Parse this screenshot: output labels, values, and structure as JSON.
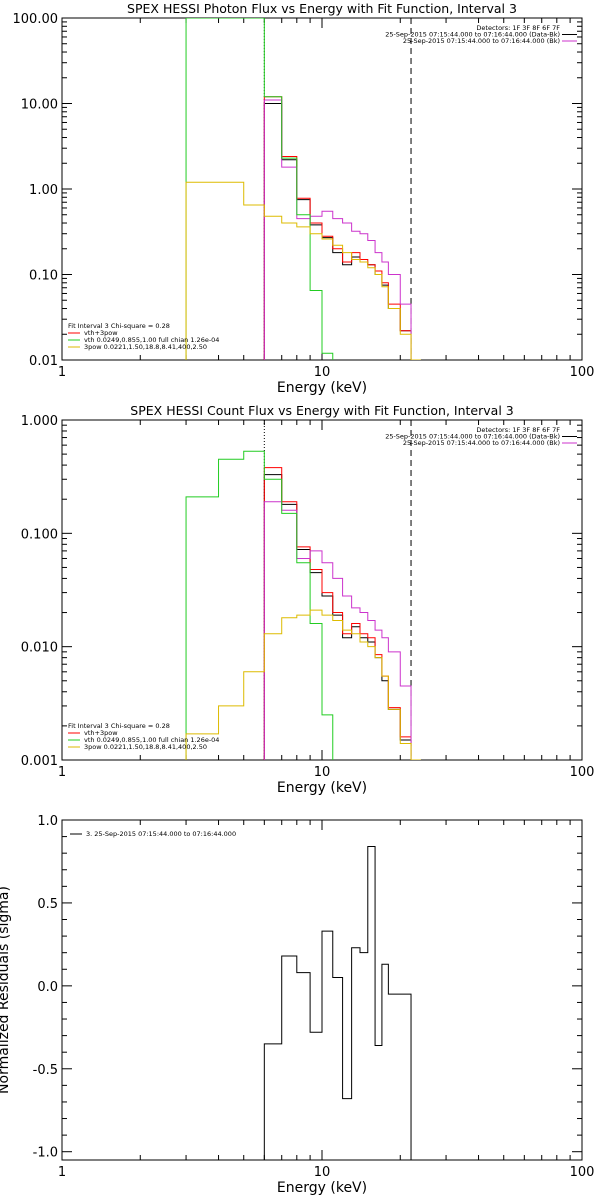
{
  "chart_data": [
    {
      "type": "line",
      "title": "SPEX HESSI Photon Flux vs Energy with Fit Function, Interval 3",
      "xlabel": "Energy (keV)",
      "ylabel": "",
      "x_scale": "log",
      "y_scale": "log",
      "xlim": [
        1,
        100
      ],
      "ylim": [
        0.01,
        100
      ],
      "x_ticks": [
        "1",
        "10",
        "100"
      ],
      "y_ticks": [
        "0.01",
        "0.10",
        "1.00",
        "10.00",
        "100.00"
      ],
      "x_tick_values": [
        1,
        10,
        100
      ],
      "y_tick_values": [
        0.01,
        0.1,
        1,
        10,
        100
      ],
      "info_top": [
        "Detectors: 1F 3F 8F 6F 7F",
        "25-Sep-2015 07:15:44.000 to 07:16:44.000 (Data-Bk)",
        "25-Sep-2015 07:15:44.000 to 07:16:44.000 (Bk)"
      ],
      "info_bottom": [
        "Fit Interval 3   Chi-square = 0.28",
        "vth+3pow",
        "vth 0.0249,0.855,1.00  full chian 1.26e-04",
        "3pow 0.0221,1.50,18.8,8.41,400,2.50"
      ],
      "vlines": [
        {
          "x": 6,
          "style": "dotted",
          "color": "#000000"
        },
        {
          "x": 22,
          "style": "dashed",
          "color": "#000000"
        }
      ],
      "series": [
        {
          "color": "#000000",
          "edges": [
            6,
            7,
            8,
            9,
            10,
            11,
            12,
            13,
            14,
            15,
            16,
            17,
            18,
            20,
            22
          ],
          "values": [
            10.0,
            2.2,
            0.75,
            0.38,
            0.27,
            0.18,
            0.13,
            0.16,
            0.14,
            0.13,
            0.1,
            0.075,
            0.04,
            0.022
          ]
        },
        {
          "color": "#ff0000",
          "edges": [
            6,
            7,
            8,
            9,
            10,
            11,
            12,
            13,
            14,
            15,
            16,
            17,
            18,
            20,
            22
          ],
          "values": [
            12.0,
            2.4,
            0.78,
            0.4,
            0.28,
            0.2,
            0.14,
            0.18,
            0.15,
            0.13,
            0.11,
            0.08,
            0.045,
            0.022
          ]
        },
        {
          "color": "#cc33cc",
          "edges": [
            6,
            7,
            8,
            9,
            10,
            11,
            12,
            13,
            14,
            15,
            16,
            17,
            18,
            20,
            22
          ],
          "values": [
            11.0,
            1.8,
            0.45,
            0.48,
            0.55,
            0.45,
            0.4,
            0.32,
            0.3,
            0.25,
            0.18,
            0.14,
            0.1,
            0.045
          ]
        },
        {
          "color": "#22cc22",
          "edges": [
            3,
            4,
            5,
            6,
            7,
            8,
            9,
            10,
            11
          ],
          "values": [
            150,
            150,
            100,
            12.0,
            2.3,
            0.5,
            0.065,
            0.012
          ]
        },
        {
          "color": "#ddbb00",
          "edges": [
            3,
            4,
            5,
            6,
            7,
            8,
            9,
            10,
            11,
            12,
            13,
            14,
            15,
            16,
            17,
            18,
            20,
            22,
            24
          ],
          "values": [
            1.2,
            1.2,
            0.65,
            0.48,
            0.4,
            0.36,
            0.3,
            0.26,
            0.22,
            0.18,
            0.15,
            0.14,
            0.12,
            0.1,
            0.072,
            0.04,
            0.02,
            0.01
          ]
        }
      ]
    },
    {
      "type": "line",
      "title": "SPEX HESSI Count Flux vs Energy with Fit Function, Interval 3",
      "xlabel": "Energy (keV)",
      "ylabel": "",
      "x_scale": "log",
      "y_scale": "log",
      "xlim": [
        1,
        100
      ],
      "ylim": [
        0.001,
        1
      ],
      "x_ticks": [
        "1",
        "10",
        "100"
      ],
      "y_ticks": [
        "0.001",
        "0.010",
        "0.100",
        "1.000"
      ],
      "x_tick_values": [
        1,
        10,
        100
      ],
      "y_tick_values": [
        0.001,
        0.01,
        0.1,
        1
      ],
      "info_top": [
        "Detectors: 1F 3F 8F 6F 7F",
        "25-Sep-2015 07:15:44.000 to 07:16:44.000 (Data-Bk)",
        "25-Sep-2015 07:15:44.000 to 07:16:44.000 (Bk)"
      ],
      "info_bottom": [
        "Fit Interval 3   Chi-square = 0.28",
        "vth+3pow",
        "vth 0.0249,0.855,1.00  full chian 1.26e-04",
        "3pow 0.0221,1.50,18.8,8.41,400,2.50"
      ],
      "vlines": [
        {
          "x": 6,
          "style": "dotted",
          "color": "#000000"
        },
        {
          "x": 22,
          "style": "dashed",
          "color": "#000000"
        }
      ],
      "series": [
        {
          "color": "#000000",
          "edges": [
            6,
            7,
            8,
            9,
            10,
            11,
            12,
            13,
            14,
            15,
            16,
            17,
            18,
            20,
            22
          ],
          "values": [
            0.33,
            0.18,
            0.072,
            0.045,
            0.028,
            0.019,
            0.012,
            0.015,
            0.012,
            0.011,
            0.008,
            0.005,
            0.0028,
            0.0015
          ]
        },
        {
          "color": "#ff0000",
          "edges": [
            6,
            7,
            8,
            9,
            10,
            11,
            12,
            13,
            14,
            15,
            16,
            17,
            18,
            20,
            22
          ],
          "values": [
            0.38,
            0.19,
            0.076,
            0.048,
            0.03,
            0.02,
            0.013,
            0.016,
            0.013,
            0.012,
            0.0085,
            0.0055,
            0.0029,
            0.0016
          ]
        },
        {
          "color": "#cc33cc",
          "edges": [
            6,
            7,
            8,
            9,
            10,
            11,
            12,
            13,
            14,
            15,
            16,
            17,
            18,
            20,
            22
          ],
          "values": [
            0.19,
            0.16,
            0.06,
            0.07,
            0.055,
            0.04,
            0.028,
            0.022,
            0.02,
            0.017,
            0.014,
            0.012,
            0.009,
            0.0045
          ]
        },
        {
          "color": "#22cc22",
          "edges": [
            3,
            4,
            5,
            6,
            7,
            8,
            9,
            10,
            11
          ],
          "values": [
            0.21,
            0.45,
            0.53,
            0.3,
            0.15,
            0.055,
            0.016,
            0.0025
          ]
        },
        {
          "color": "#ddbb00",
          "edges": [
            3,
            4,
            5,
            6,
            7,
            8,
            9,
            10,
            11,
            12,
            13,
            14,
            15,
            16,
            17,
            18,
            20,
            22,
            24
          ],
          "values": [
            0.0017,
            0.003,
            0.006,
            0.013,
            0.018,
            0.019,
            0.021,
            0.019,
            0.017,
            0.014,
            0.013,
            0.011,
            0.01,
            0.008,
            0.0055,
            0.0028,
            0.0014,
            0.0008
          ]
        }
      ]
    },
    {
      "type": "line",
      "title": "",
      "xlabel": "Energy (keV)",
      "ylabel": "Normalized Residuals (sigma)",
      "x_scale": "log",
      "y_scale": "linear",
      "xlim": [
        1,
        100
      ],
      "ylim": [
        -1.05,
        1.0
      ],
      "x_ticks": [
        "1",
        "10",
        "100"
      ],
      "y_ticks": [
        "-1.0",
        "-0.5",
        "0.0",
        "0.5",
        "1.0"
      ],
      "x_tick_values": [
        1,
        10,
        100
      ],
      "y_tick_values": [
        -1.0,
        -0.5,
        0.0,
        0.5,
        1.0
      ],
      "legend": "3. 25-Sep-2015 07:15:44.000 to 07:16:44.000",
      "series": [
        {
          "color": "#000000",
          "edges": [
            6,
            7,
            8,
            9,
            10,
            11,
            12,
            13,
            14,
            15,
            16,
            17,
            18,
            20,
            22
          ],
          "values": [
            -0.35,
            0.18,
            0.08,
            -0.28,
            0.33,
            0.05,
            -0.68,
            0.23,
            0.2,
            0.84,
            -0.36,
            0.13,
            -0.05,
            -0.05
          ]
        }
      ]
    }
  ]
}
